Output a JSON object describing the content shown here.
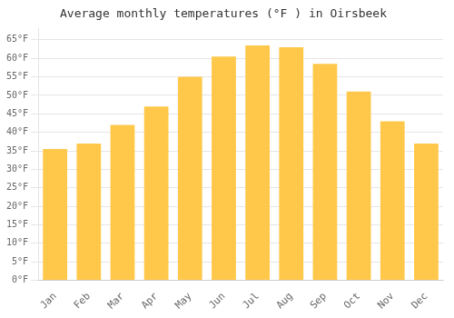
{
  "chart_data": {
    "type": "bar",
    "title": "Average monthly temperatures (°F ) in Oirsbeek",
    "categories": [
      "Jan",
      "Feb",
      "Mar",
      "Apr",
      "May",
      "Jun",
      "Jul",
      "Aug",
      "Sep",
      "Oct",
      "Nov",
      "Dec"
    ],
    "values": [
      35.5,
      37.0,
      42.0,
      47.0,
      55.0,
      60.5,
      63.5,
      63.0,
      58.5,
      51.0,
      43.0,
      37.0
    ],
    "color": "#FFC84A",
    "ylim": [
      0,
      68
    ],
    "yticks": [
      {
        "value": 0,
        "label": "0°F"
      },
      {
        "value": 5,
        "label": "5°F"
      },
      {
        "value": 10,
        "label": "10°F"
      },
      {
        "value": 15,
        "label": "15°F"
      },
      {
        "value": 20,
        "label": "20°F"
      },
      {
        "value": 25,
        "label": "25°F"
      },
      {
        "value": 30,
        "label": "30°F"
      },
      {
        "value": 35,
        "label": "35°F"
      },
      {
        "value": 40,
        "label": "40°F"
      },
      {
        "value": 45,
        "label": "45°F"
      },
      {
        "value": 50,
        "label": "50°F"
      },
      {
        "value": 55,
        "label": "55°F"
      },
      {
        "value": 60,
        "label": "60°F"
      },
      {
        "value": 65,
        "label": "65°F"
      }
    ],
    "grid": true
  }
}
